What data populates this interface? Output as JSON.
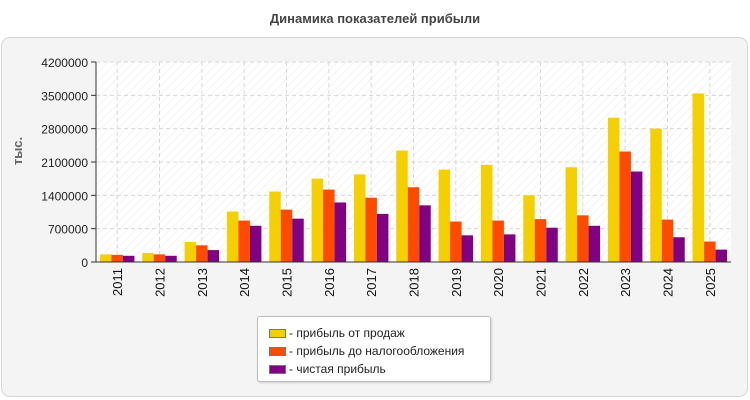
{
  "title": "Динамика показателей прибыли",
  "chart_data": {
    "type": "bar",
    "title": "Динамика показателей прибыли",
    "xlabel": "",
    "ylabel": "тыс.",
    "ylim": [
      0,
      4200000
    ],
    "yticks": [
      0,
      700000,
      1400000,
      2100000,
      2800000,
      3500000,
      4200000
    ],
    "grid": true,
    "legend_placement": "bottom-center",
    "categories": [
      "2011",
      "2012",
      "2013",
      "2014",
      "2015",
      "2016",
      "2017",
      "2018",
      "2019",
      "2020",
      "2021",
      "2022",
      "2023",
      "2024",
      "2025"
    ],
    "series": [
      {
        "name": "- прибыль от продаж",
        "color": "#f5d000",
        "values": [
          160000,
          190000,
          420000,
          1060000,
          1480000,
          1750000,
          1840000,
          2340000,
          1940000,
          2040000,
          1400000,
          1990000,
          3030000,
          2800000,
          3540000
        ]
      },
      {
        "name": "- прибыль до налогообложения",
        "color": "#ff4b00",
        "values": [
          150000,
          160000,
          350000,
          870000,
          1100000,
          1520000,
          1350000,
          1570000,
          850000,
          870000,
          900000,
          980000,
          2320000,
          890000,
          430000
        ]
      },
      {
        "name": "- чистая прибыль",
        "color": "#7e0282",
        "values": [
          130000,
          130000,
          250000,
          760000,
          910000,
          1250000,
          1010000,
          1190000,
          560000,
          580000,
          720000,
          760000,
          1900000,
          520000,
          260000
        ]
      }
    ]
  }
}
